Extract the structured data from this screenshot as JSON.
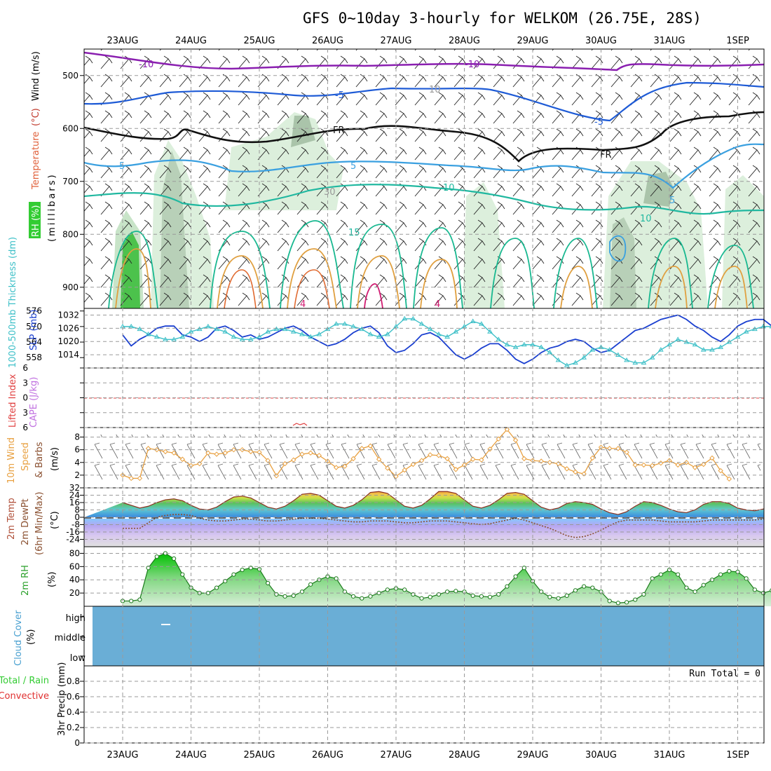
{
  "title": "GFS 0~10day 3-hourly for WELKOM (26.75E, 28S)",
  "date_labels": [
    "23AUG",
    "24AUG",
    "25AUG",
    "26AUG",
    "27AUG",
    "28AUG",
    "29AUG",
    "30AUG",
    "31AUG",
    "1SEP"
  ],
  "colors": {
    "temperature": "#e0603a",
    "wind": "#2a6fd4",
    "rh_box": "#33cc33",
    "thickness": "#3ec0c8",
    "slp": "#1a3fd0",
    "lifted_index": "#e04040",
    "cape": "#c070e0",
    "wind10m": "#e8a040",
    "dewpoint": "#8a5030",
    "rh2m": "#2aa02a",
    "cloud": "#6aaed6",
    "precip_total": "#33cc33",
    "precip_conv": "#e03030"
  },
  "panels": {
    "upper_air": {
      "ylabel_parts": {
        "rh": "RH (%)",
        "temperature": "Temperature",
        "unit": "(°C)",
        "wind": "Wind (m/s)"
      },
      "pressure_axis_label": "(millibars)",
      "yticks": [
        "500",
        "600",
        "700",
        "800",
        "900"
      ],
      "contour_labels": [
        "-10",
        "-10",
        "-5",
        "-5",
        "5",
        "5",
        "10",
        "10",
        "15",
        "5",
        "FR",
        "FR",
        "10",
        "30",
        "4",
        "4"
      ]
    },
    "slp": {
      "label_thickness": "1000-500mb Thickness (dm)",
      "label_slp": "SLP (mb)",
      "left_ticks": [
        "576",
        "570",
        "564",
        "558"
      ],
      "right_ticks": [
        "1032",
        "1026",
        "1020",
        "1014"
      ]
    },
    "stability": {
      "label_li": "Lifted Index",
      "label_cape": "CAPE (J/kg)",
      "yticks": [
        "6",
        "3",
        "0",
        "3",
        "6"
      ]
    },
    "wind10m": {
      "label_line1": "10m Wind",
      "label_line2": "Speed",
      "label_line3": "& Barbs",
      "unit": "(m/s)",
      "yticks": [
        "8",
        "6",
        "4",
        "2"
      ]
    },
    "temp2m": {
      "label_line1": "2m Temp",
      "label_line2": "2m DewPt",
      "label_line3": "(6hr Min/Max)",
      "unit": "(°C)",
      "yticks": [
        "32",
        "24",
        "16",
        "8",
        "0",
        "-8",
        "-16",
        "-24"
      ]
    },
    "rh2m": {
      "label": "2m RH",
      "unit": "(%)",
      "yticks": [
        "80",
        "60",
        "40",
        "20"
      ]
    },
    "cloud": {
      "label": "Cloud Cover",
      "unit": "(%)",
      "levels": [
        "high",
        "middle",
        "low"
      ]
    },
    "precip": {
      "label_total": "Total / Rain",
      "label_conv": "Convective",
      "label_axis": "3hr Precip (mm)",
      "run_total": "Run Total = 0",
      "yticks": [
        "0.8",
        "0.6",
        "0.4",
        "0.2",
        "0"
      ]
    }
  },
  "chart_data": {
    "type": "line",
    "x_labels": [
      "23AUG",
      "24AUG",
      "25AUG",
      "26AUG",
      "27AUG",
      "28AUG",
      "29AUG",
      "30AUG",
      "31AUG",
      "1SEP"
    ],
    "steps_per_day": 8,
    "series": [
      {
        "name": "SLP (mb)",
        "unit": "mb",
        "values": [
          1023,
          1018,
          1021,
          1023,
          1026,
          1027,
          1027,
          1023,
          1022,
          1020,
          1022,
          1026,
          1027,
          1025,
          1022,
          1023,
          1021,
          1022,
          1024,
          1026,
          1027,
          1025,
          1022,
          1020,
          1018,
          1019,
          1021,
          1024,
          1026,
          1027,
          1024,
          1018,
          1015,
          1016,
          1019,
          1023,
          1024,
          1022,
          1018,
          1014,
          1012,
          1014,
          1017,
          1019,
          1019,
          1016,
          1012,
          1010,
          1012,
          1015,
          1017,
          1018,
          1020,
          1021,
          1020,
          1017,
          1015,
          1016,
          1019,
          1022,
          1025,
          1026,
          1028,
          1030,
          1031,
          1032,
          1030,
          1027,
          1025,
          1022,
          1020,
          1023,
          1027,
          1029,
          1030,
          1030,
          1027,
          1024,
          1022,
          1025,
          1028,
          1030,
          1031
        ]
      },
      {
        "name": "1000-500mb Thickness (dm)",
        "unit": "dm",
        "values": [
          570,
          570,
          569,
          567,
          566,
          565,
          565,
          566,
          568,
          569,
          570,
          569,
          568,
          566,
          565,
          565,
          566,
          568,
          569,
          569,
          568,
          567,
          566,
          567,
          569,
          571,
          571,
          570,
          569,
          567,
          566,
          567,
          570,
          573,
          573,
          571,
          569,
          567,
          566,
          568,
          570,
          572,
          571,
          568,
          565,
          563,
          562,
          563,
          563,
          562,
          560,
          557,
          555,
          556,
          558,
          561,
          562,
          561,
          559,
          557,
          556,
          556,
          558,
          561,
          563,
          565,
          564,
          563,
          561,
          561,
          562,
          564,
          566,
          568,
          569,
          570,
          570,
          569,
          568,
          567,
          567,
          568,
          567
        ]
      },
      {
        "name": "10m Wind Speed (m/s)",
        "unit": "m/s",
        "values": [
          2,
          1.5,
          1.5,
          6.2,
          6,
          5.7,
          5.5,
          4.5,
          3.5,
          3.8,
          5.5,
          5.3,
          5.5,
          6,
          6,
          5.7,
          5.6,
          4.3,
          1.9,
          3.8,
          4.4,
          5.3,
          5.5,
          5.1,
          4.2,
          3.2,
          3.4,
          4.6,
          6.2,
          6.6,
          4.5,
          3.1,
          1.8,
          2.8,
          3.7,
          4.3,
          5.2,
          5.1,
          4.6,
          2.9,
          3.6,
          4.5,
          4.4,
          6.1,
          7.7,
          9.2,
          7.5,
          4.6,
          4.3,
          4.2,
          4,
          3.8,
          3,
          2.5,
          2.2,
          4.7,
          6.4,
          6.2,
          6.2,
          5.6,
          3.6,
          3.6,
          3.5,
          3.9,
          4.3,
          3.6,
          4,
          3.2,
          3.7,
          4.7,
          2.7,
          1.4
        ]
      },
      {
        "name": "2m Temp (°C)",
        "unit": "°C",
        "values": [
          16,
          13,
          10,
          12,
          16,
          19,
          20,
          18,
          13,
          9,
          8,
          11,
          17,
          22,
          23,
          21,
          16,
          11,
          9,
          12,
          18,
          25,
          26,
          24,
          18,
          12,
          10,
          13,
          19,
          27,
          28,
          26,
          19,
          12,
          10,
          13,
          20,
          28,
          28,
          26,
          19,
          12,
          10,
          13,
          19,
          26,
          27,
          25,
          18,
          11,
          8,
          10,
          15,
          17,
          16,
          14,
          9,
          5,
          3,
          6,
          12,
          17,
          16,
          13,
          9,
          6,
          5,
          8,
          14,
          17,
          17,
          15,
          10,
          8,
          7,
          9,
          13,
          17,
          18,
          15,
          11,
          9,
          10
        ]
      },
      {
        "name": "2m DewPt (°C)",
        "unit": "°C",
        "values": [
          -12,
          -12,
          -12,
          -6,
          0,
          2,
          3,
          3,
          2,
          -1,
          -3,
          -4,
          -4,
          -3,
          -2,
          -2,
          -3,
          -4,
          -4,
          -3,
          -2,
          -1,
          -1,
          -1,
          -2,
          -3,
          -4,
          -5,
          -5,
          -4,
          -4,
          -4,
          -5,
          -6,
          -6,
          -5,
          -4,
          -4,
          -4,
          -5,
          -6,
          -7,
          -8,
          -7,
          -5,
          -3,
          -1,
          -3,
          -6,
          -9,
          -12,
          -16,
          -20,
          -22,
          -21,
          -18,
          -14,
          -9,
          -5,
          -3,
          -3,
          -3,
          -3,
          -4,
          -5,
          -5,
          -5,
          -5,
          -4,
          -3,
          -3,
          -3,
          -3,
          -3,
          -3,
          -2,
          -2,
          -3,
          -3,
          -3,
          -3
        ]
      },
      {
        "name": "2m RH (%)",
        "unit": "%",
        "values": [
          8,
          8,
          10,
          58,
          75,
          80,
          72,
          48,
          28,
          20,
          20,
          28,
          38,
          48,
          55,
          58,
          56,
          35,
          18,
          15,
          16,
          22,
          33,
          40,
          45,
          42,
          22,
          15,
          12,
          15,
          20,
          25,
          27,
          25,
          18,
          12,
          14,
          18,
          22,
          23,
          22,
          16,
          15,
          14,
          18,
          30,
          45,
          58,
          38,
          22,
          14,
          12,
          16,
          24,
          30,
          28,
          22,
          8,
          5,
          6,
          10,
          18,
          42,
          48,
          55,
          48,
          28,
          22,
          32,
          40,
          48,
          53,
          52,
          42,
          25,
          20,
          24,
          28,
          33,
          38,
          44,
          38
        ]
      },
      {
        "name": "3hr Precip (mm)",
        "unit": "mm",
        "values": [
          0
        ]
      },
      {
        "name": "Lifted Index",
        "values": []
      },
      {
        "name": "CAPE (J/kg)",
        "values": []
      }
    ],
    "axes": {
      "pressure_mb": [
        450,
        940
      ],
      "slp_mb": [
        1008,
        1035
      ],
      "thickness_dm": [
        554,
        577
      ],
      "lifted_index": [
        -6,
        6
      ],
      "wind10m_ms": [
        0,
        9.5
      ],
      "temp_c": [
        -32,
        32
      ],
      "rh_pct": [
        0,
        90
      ],
      "precip_mm": [
        0,
        1
      ]
    },
    "grid": true
  }
}
